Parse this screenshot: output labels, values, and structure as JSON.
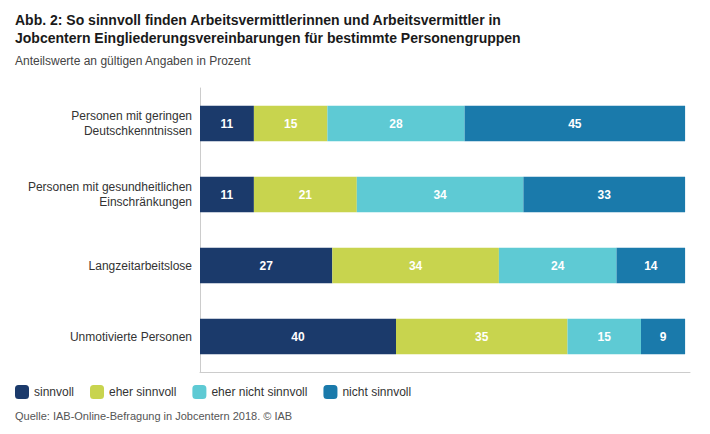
{
  "chart_data": {
    "type": "bar",
    "title": "Abb. 2: So sinnvoll finden Arbeitsvermittlerinnen und Arbeitsvermittler in\nJobcentern Eingliederungsvereinbarungen für bestimmte Personengruppen",
    "subtitle": "Anteilswerte an gültigen Angaben in Prozent",
    "annotations": [
      "Quelle: IAB-Online-Befragung in Jobcentern 2018. © IAB"
    ],
    "categories": [
      "Personen mit geringen\nDeutschkenntnissen",
      "Personen mit gesundheitlichen\nEinschränkungen",
      "Langzeitarbeitslose",
      "Unmotivierte Personen"
    ],
    "series": [
      {
        "name": "sinnvoll",
        "color": "#1b3a6b",
        "values": [
          11,
          11,
          27,
          40
        ]
      },
      {
        "name": "eher sinnvoll",
        "color": "#c8d44e",
        "values": [
          15,
          21,
          34,
          35
        ]
      },
      {
        "name": "eher nicht sinnvoll",
        "color": "#5ecad4",
        "values": [
          28,
          34,
          24,
          15
        ]
      },
      {
        "name": "nicht sinnvoll",
        "color": "#1a7aab",
        "values": [
          45,
          33,
          14,
          9
        ]
      }
    ],
    "orientation": "horizontal",
    "stacked": true,
    "data_labels": true,
    "xlim": [
      0,
      100
    ],
    "tick_labels": "y",
    "grid": false,
    "legend": "lower left"
  }
}
